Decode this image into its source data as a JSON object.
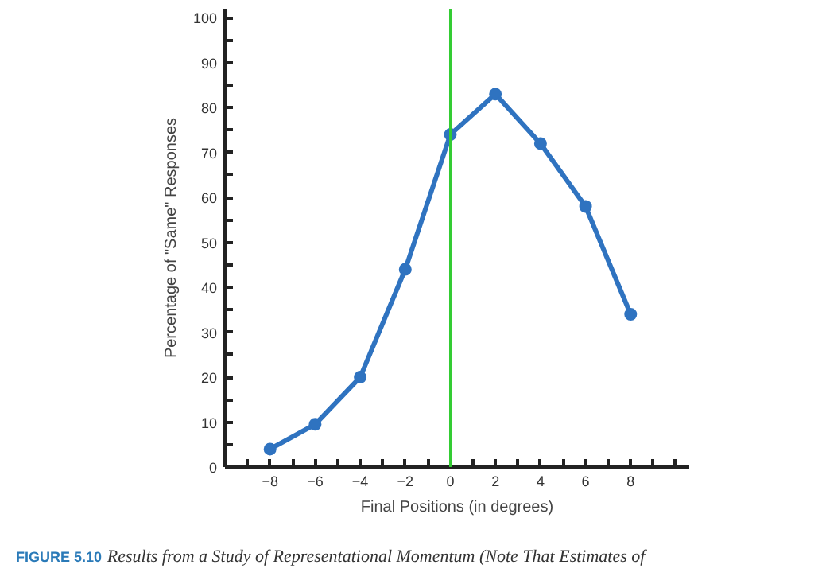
{
  "chart_data": {
    "type": "line",
    "x": [
      -8,
      -6,
      -4,
      -2,
      0,
      2,
      4,
      6,
      8
    ],
    "series": [
      {
        "color": "#2f73c0",
        "values": [
          4,
          9.5,
          20,
          44,
          74,
          83,
          72,
          58,
          34
        ]
      }
    ],
    "xlabel": "Final Positions (in degrees)",
    "ylabel": "Percentage of \"Same\" Responses",
    "xlim": [
      -10,
      10.6
    ],
    "xticks": [
      {
        "value": -10,
        "label": null
      },
      {
        "value": -9,
        "label": null
      },
      {
        "value": -8,
        "label": "−8"
      },
      {
        "value": -7,
        "label": null
      },
      {
        "value": -6,
        "label": "−6"
      },
      {
        "value": -5,
        "label": null
      },
      {
        "value": -4,
        "label": "−4"
      },
      {
        "value": -3,
        "label": null
      },
      {
        "value": -2,
        "label": "−2"
      },
      {
        "value": -1,
        "label": null
      },
      0,
      {
        "value": 1,
        "label": null
      },
      2,
      {
        "value": 3,
        "label": null
      },
      4,
      {
        "value": 5,
        "label": null
      },
      6,
      {
        "value": 7,
        "label": null
      },
      8,
      {
        "value": 9,
        "label": null
      },
      {
        "value": 10,
        "label": null
      }
    ],
    "ylim": [
      0,
      102
    ],
    "yticks": [
      0,
      {
        "value": 5,
        "label": null
      },
      10,
      {
        "value": 15,
        "label": null
      },
      20,
      {
        "value": 25,
        "label": null
      },
      30,
      {
        "value": 35,
        "label": null
      },
      40,
      {
        "value": 45,
        "label": null
      },
      50,
      {
        "value": 55,
        "label": null
      },
      60,
      {
        "value": 65,
        "label": null
      },
      70,
      {
        "value": 75,
        "label": null
      },
      80,
      {
        "value": 85,
        "label": null
      },
      90,
      {
        "value": 95,
        "label": null
      },
      100
    ],
    "ref_lines": [
      {
        "axis": "x",
        "value": 0,
        "color": "#33cc33"
      }
    ],
    "marker": "circle",
    "line_style": "solid",
    "grid": false,
    "annotations": [
      "FIGURE 5.10",
      "Results from a Study of Representational Momentum (Note That Estimates of"
    ]
  }
}
